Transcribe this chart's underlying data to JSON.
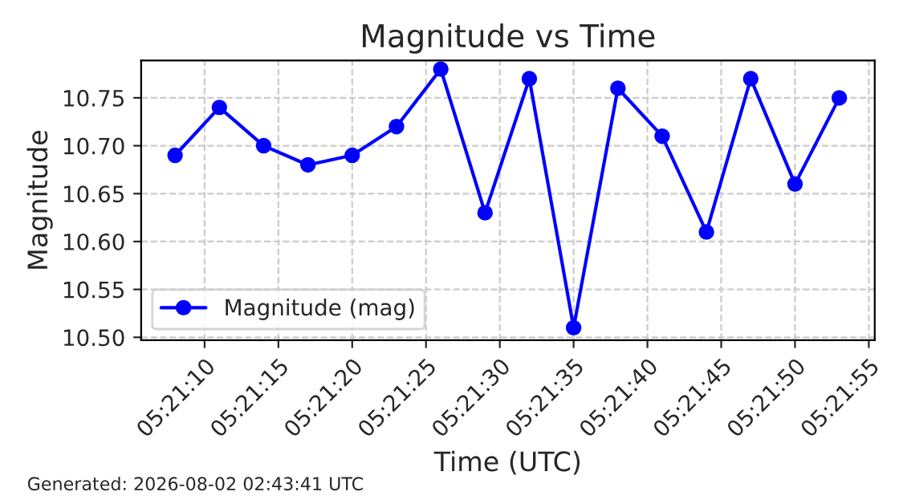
{
  "chart_data": {
    "type": "line",
    "title": "Magnitude vs Time",
    "xlabel": "Time (UTC)",
    "ylabel": "Magnitude",
    "x": [
      "2026-08-02T05:21:08",
      "2026-08-02T05:21:11",
      "2026-08-02T05:21:14",
      "2026-08-02T05:21:17",
      "2026-08-02T05:21:20",
      "2026-08-02T05:21:23",
      "2026-08-02T05:21:26",
      "2026-08-02T05:21:29",
      "2026-08-02T05:21:32",
      "2026-08-02T05:21:35",
      "2026-08-02T05:21:38",
      "2026-08-02T05:21:41",
      "2026-08-02T05:21:44",
      "2026-08-02T05:21:47",
      "2026-08-02T05:21:50",
      "2026-08-02T05:21:53"
    ],
    "series": [
      {
        "name": "Magnitude (mag)",
        "color": "#0000ff",
        "values": [
          10.69,
          10.74,
          10.7,
          10.68,
          10.69,
          10.72,
          10.78,
          10.63,
          10.77,
          10.51,
          10.76,
          10.71,
          10.61,
          10.77,
          10.66,
          10.75
        ]
      }
    ],
    "xlim": [
      "2026-08-02T05:21:05.7",
      "2026-08-02T05:21:55.4"
    ],
    "xticks": [
      {
        "value": "2026-08-02T05:21:10",
        "label": "05:21:10"
      },
      {
        "value": "2026-08-02T05:21:15",
        "label": "05:21:15"
      },
      {
        "value": "2026-08-02T05:21:20",
        "label": "05:21:20"
      },
      {
        "value": "2026-08-02T05:21:25",
        "label": "05:21:25"
      },
      {
        "value": "2026-08-02T05:21:30",
        "label": "05:21:30"
      },
      {
        "value": "2026-08-02T05:21:35",
        "label": "05:21:35"
      },
      {
        "value": "2026-08-02T05:21:40",
        "label": "05:21:40"
      },
      {
        "value": "2026-08-02T05:21:45",
        "label": "05:21:45"
      },
      {
        "value": "2026-08-02T05:21:50",
        "label": "05:21:50"
      },
      {
        "value": "2026-08-02T05:21:55",
        "label": "05:21:55"
      }
    ],
    "ylim": [
      10.497,
      10.789
    ],
    "yticks": [
      {
        "value": 10.5,
        "label": "10.50"
      },
      {
        "value": 10.55,
        "label": "10.55"
      },
      {
        "value": 10.6,
        "label": "10.60"
      },
      {
        "value": 10.65,
        "label": "10.65"
      },
      {
        "value": 10.7,
        "label": "10.70"
      },
      {
        "value": 10.75,
        "label": "10.75"
      }
    ],
    "grid": true,
    "legend": "bottom left",
    "marker": "circle",
    "line_style": "solid",
    "annotations": [
      "Generated: 2026-08-02 02:43:41 UTC"
    ]
  }
}
